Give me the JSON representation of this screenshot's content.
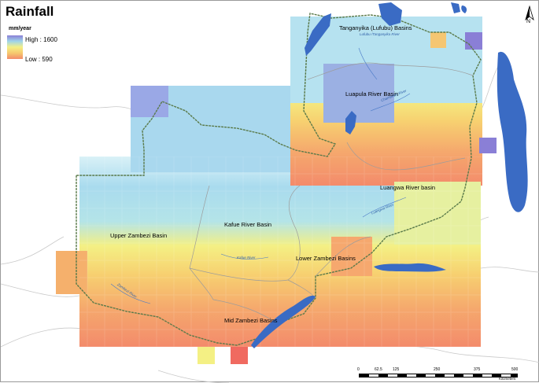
{
  "title": "Rainfall",
  "legend": {
    "unit": "mm/year",
    "high_label": "High : 1600",
    "low_label": "Low : 590",
    "colors": [
      "#8a7fd6",
      "#9fd5ea",
      "#f4f084",
      "#f6c86e",
      "#f38b6b"
    ]
  },
  "basins": [
    "Tanganyika (Lufubu) Basins",
    "Luapula River Basin",
    "Luangwa River basin",
    "Kafue River Basin",
    "Upper Zambezi Basin",
    "Lower Zambezi Basins",
    "Mid Zambezi Basins"
  ],
  "rivers": [
    "Lufubu /Tanganyika River",
    "Chambeshi River",
    "Luangwa River",
    "Kafue River",
    "Zambezi River"
  ],
  "north_label": "N",
  "scale": {
    "ticks": [
      "0",
      "62.5",
      "125",
      "250",
      "375",
      "500"
    ],
    "unit": "Kilometers"
  }
}
